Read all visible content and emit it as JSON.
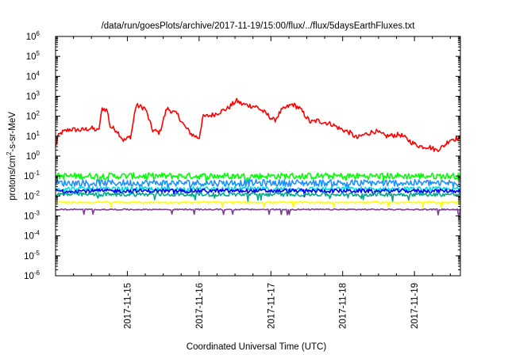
{
  "chart_data": {
    "type": "line",
    "title": "/data/run/goesPlots/archive/2017-11-19/15:00/flux/../flux/5daysEarthFluxes.txt",
    "xlabel": "Coordinated Universal Time (UTC)",
    "ylabel": {
      "base": "protons/cm",
      "sup": "2",
      "rest": "-s-sr-MeV"
    },
    "yscale": "log",
    "ylim_exp": [
      -6,
      6
    ],
    "y_ticks": [
      {
        "base": "10",
        "exp": "-6"
      },
      {
        "base": "10",
        "exp": "-5"
      },
      {
        "base": "10",
        "exp": "-4"
      },
      {
        "base": "10",
        "exp": "-3"
      },
      {
        "base": "10",
        "exp": "-2"
      },
      {
        "base": "10",
        "exp": "-1"
      },
      {
        "base": "10",
        "exp": "0"
      },
      {
        "base": "10",
        "exp": "1"
      },
      {
        "base": "10",
        "exp": "2"
      },
      {
        "base": "10",
        "exp": "3"
      },
      {
        "base": "10",
        "exp": "4"
      },
      {
        "base": "10",
        "exp": "5"
      },
      {
        "base": "10",
        "exp": "6"
      }
    ],
    "x_ticks": [
      "2017-11-15",
      "2017-11-16",
      "2017-11-17",
      "2017-11-18",
      "2017-11-19"
    ],
    "x_tick_days": [
      1,
      2,
      3,
      4,
      5
    ],
    "x_range_days": [
      0,
      5.64
    ],
    "grid": false,
    "series": [
      {
        "color": "#ff0000",
        "base": 14,
        "noise": 0.25,
        "points": [
          [
            0.0,
            3
          ],
          [
            0.03,
            9
          ],
          [
            0.08,
            15
          ],
          [
            0.2,
            22
          ],
          [
            0.35,
            20
          ],
          [
            0.5,
            25
          ],
          [
            0.6,
            18
          ],
          [
            0.65,
            250
          ],
          [
            0.72,
            200
          ],
          [
            0.76,
            30
          ],
          [
            0.85,
            20
          ],
          [
            0.95,
            6
          ],
          [
            1.05,
            10
          ],
          [
            1.12,
            350
          ],
          [
            1.25,
            250
          ],
          [
            1.35,
            20
          ],
          [
            1.45,
            15
          ],
          [
            1.55,
            250
          ],
          [
            1.7,
            120
          ],
          [
            1.8,
            30
          ],
          [
            1.9,
            12
          ],
          [
            2.0,
            8
          ],
          [
            2.05,
            90
          ],
          [
            2.2,
            120
          ],
          [
            2.4,
            250
          ],
          [
            2.52,
            600
          ],
          [
            2.6,
            400
          ],
          [
            2.8,
            300
          ],
          [
            2.95,
            120
          ],
          [
            3.05,
            60
          ],
          [
            3.15,
            200
          ],
          [
            3.3,
            400
          ],
          [
            3.4,
            250
          ],
          [
            3.55,
            50
          ],
          [
            3.65,
            60
          ],
          [
            3.85,
            40
          ],
          [
            3.95,
            25
          ],
          [
            4.1,
            15
          ],
          [
            4.2,
            8
          ],
          [
            4.3,
            12
          ],
          [
            4.45,
            18
          ],
          [
            4.6,
            10
          ],
          [
            4.8,
            12
          ],
          [
            5.0,
            4
          ],
          [
            5.1,
            3
          ],
          [
            5.2,
            3
          ],
          [
            5.3,
            2
          ],
          [
            5.4,
            3
          ],
          [
            5.5,
            7
          ],
          [
            5.64,
            8
          ]
        ]
      },
      {
        "color": "#00ff00",
        "base": 0.1,
        "noise": 0.16
      },
      {
        "color": "#1e90ff",
        "base": 0.045,
        "noise": 0.17
      },
      {
        "color": "#00e0e0",
        "base": 0.022,
        "noise": 0.12
      },
      {
        "color": "#0000ff",
        "base": 0.018,
        "noise": 0.1
      },
      {
        "color": "#00aa88",
        "base": 0.012,
        "noise": 0.1
      },
      {
        "color": "#ffff00",
        "base": 0.0048,
        "noise": 0.04
      },
      {
        "color": "#7f3f8f",
        "base": 0.0021,
        "noise": 0.03
      }
    ]
  }
}
